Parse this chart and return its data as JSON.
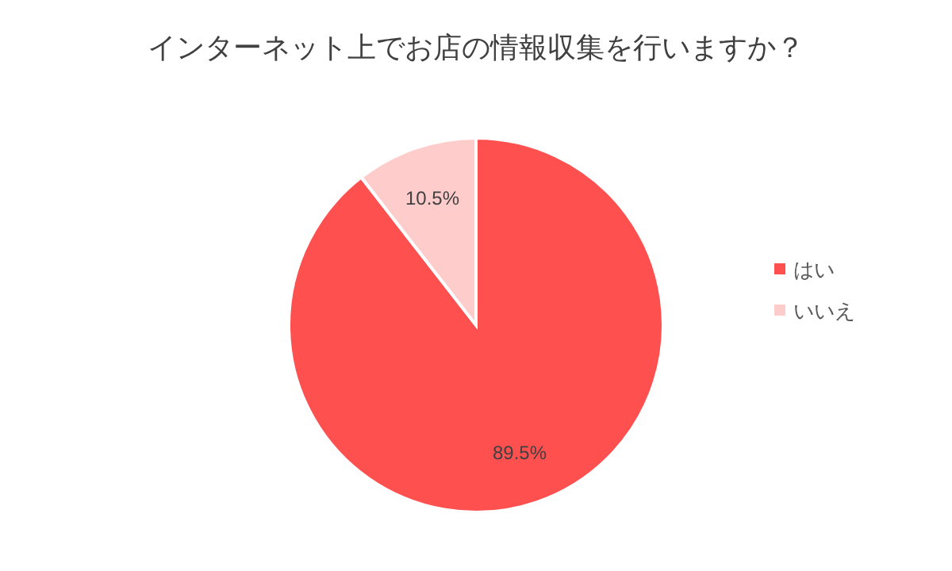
{
  "chart_data": {
    "type": "pie",
    "title": "インターネット上でお店の情報収集を行いますか？",
    "categories": [
      "はい",
      "いいえ"
    ],
    "values": [
      89.5,
      10.5
    ],
    "value_labels": [
      "89.5%",
      "10.5%"
    ],
    "colors": [
      "#ff5050",
      "#ffcccc"
    ],
    "legend": "right"
  }
}
